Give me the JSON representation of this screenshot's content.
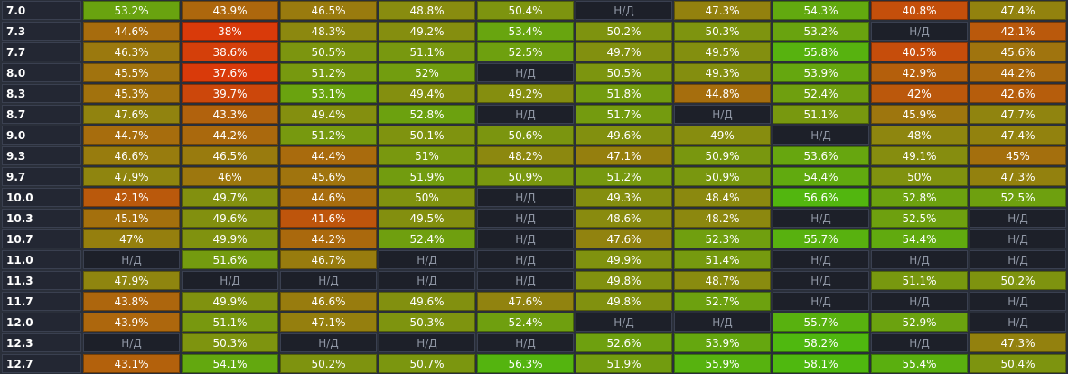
{
  "na_label": "Н/Д",
  "rows": [
    {
      "label": "7.0",
      "values": [
        53.2,
        43.9,
        46.5,
        48.8,
        50.4,
        null,
        47.3,
        54.3,
        40.8,
        47.4
      ]
    },
    {
      "label": "7.3",
      "values": [
        44.6,
        38,
        48.3,
        49.2,
        53.4,
        50.2,
        50.3,
        53.2,
        null,
        42.1
      ]
    },
    {
      "label": "7.7",
      "values": [
        46.3,
        38.6,
        50.5,
        51.1,
        52.5,
        49.7,
        49.5,
        55.8,
        40.5,
        45.6
      ]
    },
    {
      "label": "8.0",
      "values": [
        45.5,
        37.6,
        51.2,
        52,
        null,
        50.5,
        49.3,
        53.9,
        42.9,
        44.2
      ]
    },
    {
      "label": "8.3",
      "values": [
        45.3,
        39.7,
        53.1,
        49.4,
        49.2,
        51.8,
        44.8,
        52.4,
        42,
        42.6
      ]
    },
    {
      "label": "8.7",
      "values": [
        47.6,
        43.3,
        49.4,
        52.8,
        null,
        51.7,
        null,
        51.1,
        45.9,
        47.7
      ]
    },
    {
      "label": "9.0",
      "values": [
        44.7,
        44.2,
        51.2,
        50.1,
        50.6,
        49.6,
        49,
        null,
        48,
        47.4
      ]
    },
    {
      "label": "9.3",
      "values": [
        46.6,
        46.5,
        44.4,
        51,
        48.2,
        47.1,
        50.9,
        53.6,
        49.1,
        45
      ]
    },
    {
      "label": "9.7",
      "values": [
        47.9,
        46,
        45.6,
        51.9,
        50.9,
        51.2,
        50.9,
        54.4,
        50,
        47.3
      ]
    },
    {
      "label": "10.0",
      "values": [
        42.1,
        49.7,
        44.6,
        50,
        null,
        49.3,
        48.4,
        56.6,
        52.8,
        52.5
      ]
    },
    {
      "label": "10.3",
      "values": [
        45.1,
        49.6,
        41.6,
        49.5,
        null,
        48.6,
        48.2,
        null,
        52.5,
        null
      ]
    },
    {
      "label": "10.7",
      "values": [
        47,
        49.9,
        44.2,
        52.4,
        null,
        47.6,
        52.3,
        55.7,
        54.4,
        null
      ]
    },
    {
      "label": "11.0",
      "values": [
        null,
        51.6,
        46.7,
        null,
        null,
        49.9,
        51.4,
        null,
        null,
        null
      ]
    },
    {
      "label": "11.3",
      "values": [
        47.9,
        null,
        null,
        null,
        null,
        49.8,
        48.7,
        null,
        51.1,
        50.2
      ]
    },
    {
      "label": "11.7",
      "values": [
        43.8,
        49.9,
        46.6,
        49.6,
        47.6,
        49.8,
        52.7,
        null,
        null,
        null
      ]
    },
    {
      "label": "12.0",
      "values": [
        43.9,
        51.1,
        47.1,
        50.3,
        52.4,
        null,
        null,
        55.7,
        52.9,
        null
      ]
    },
    {
      "label": "12.3",
      "values": [
        null,
        50.3,
        null,
        null,
        null,
        52.6,
        53.9,
        58.2,
        null,
        47.3
      ]
    },
    {
      "label": "12.7",
      "values": [
        43.1,
        54.1,
        50.2,
        50.7,
        56.3,
        51.9,
        55.9,
        58.1,
        55.4,
        50.4
      ]
    }
  ],
  "colors": {
    "low": "#d93a0a",
    "mid": "#8a8a0f",
    "high": "#4fb80f",
    "na": "#1d2029"
  }
}
